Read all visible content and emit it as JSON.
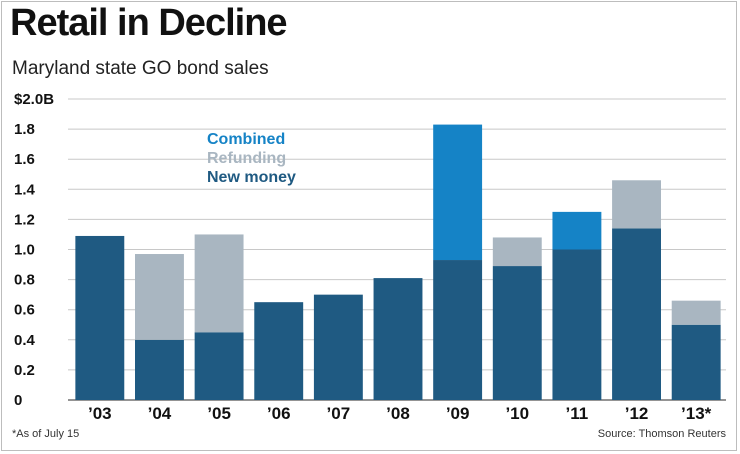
{
  "title": "Retail in Decline",
  "subtitle": "Maryland state GO bond sales",
  "footnote": "*As of July 15",
  "source": "Source: Thomson Reuters",
  "chart_data": {
    "type": "bar",
    "stacked": true,
    "categories": [
      "'03",
      "'04",
      "'05",
      "'06",
      "'07",
      "'08",
      "'09",
      "'10",
      "'11",
      "'12",
      "'13*"
    ],
    "series": [
      {
        "name": "New money",
        "color": "#1f5a82",
        "values": [
          1.09,
          0.4,
          0.45,
          0.65,
          0.7,
          0.81,
          0.93,
          0.89,
          1.0,
          1.14,
          0.5
        ]
      },
      {
        "name": "Refunding",
        "color": "#a9b6c1",
        "values": [
          0,
          0.57,
          0.65,
          0,
          0,
          0,
          0,
          0.19,
          0,
          0.32,
          0.16
        ]
      },
      {
        "name": "Combined",
        "color": "#1583c6",
        "values": [
          0,
          0,
          0,
          0,
          0,
          0,
          0.9,
          0,
          0.25,
          0,
          0
        ]
      }
    ],
    "legend_order": [
      "Combined",
      "Refunding",
      "New money"
    ],
    "legend_placement": "top-left inside plot",
    "ylim": [
      0,
      2.0
    ],
    "yticks": [
      0,
      0.2,
      0.4,
      0.6,
      0.8,
      1.0,
      1.2,
      1.4,
      1.6,
      1.8,
      2.0
    ],
    "ytick_labels": [
      "0",
      "0.2",
      "0.4",
      "0.6",
      "0.8",
      "1.0",
      "1.2",
      "1.4",
      "1.6",
      "1.8",
      "$2.0B"
    ],
    "grid": true
  }
}
